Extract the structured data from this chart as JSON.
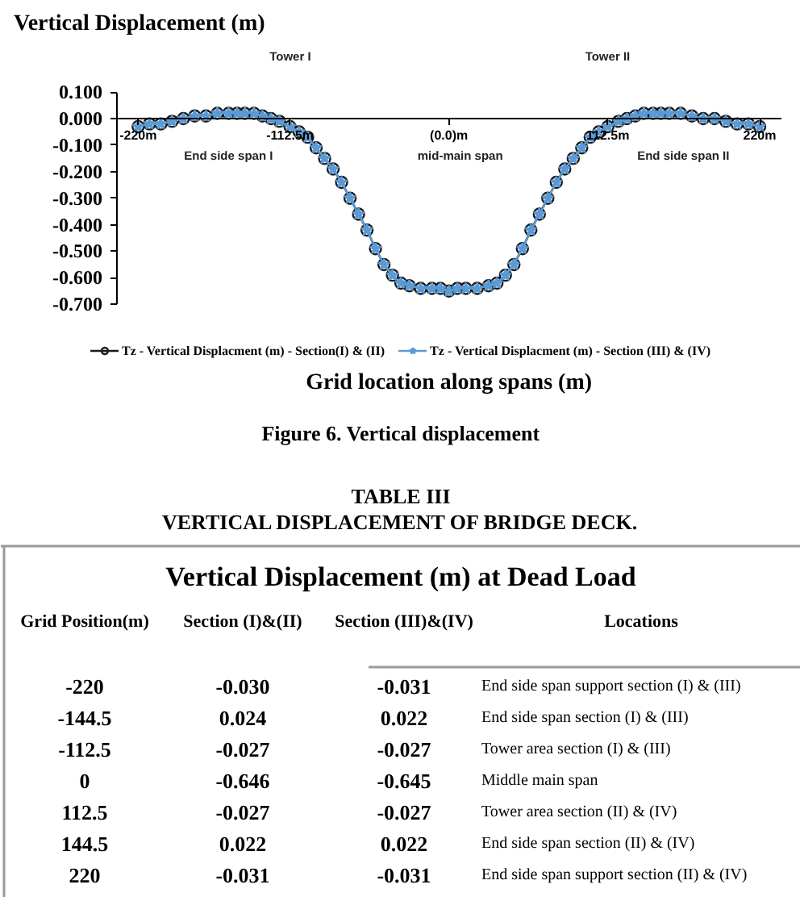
{
  "chart_data": [
    {
      "type": "line",
      "title": "Vertical Displacement (m)",
      "xlabel": "Grid location along spans (m)",
      "x": [
        -220,
        -212,
        -204,
        -196,
        -188,
        -180,
        -172,
        -164,
        -156,
        -150,
        -144.5,
        -138,
        -132,
        -126,
        -120,
        -112.5,
        -106,
        -100,
        -94,
        -88,
        -82,
        -76,
        -70,
        -64,
        -58,
        -52,
        -46,
        -40,
        -34,
        -28,
        -20,
        -12,
        -6,
        0,
        6,
        12,
        20,
        28,
        34,
        40,
        46,
        52,
        58,
        64,
        70,
        76,
        82,
        88,
        94,
        100,
        106,
        112.5,
        120,
        126,
        132,
        138,
        144.5,
        150,
        156,
        164,
        172,
        180,
        188,
        196,
        204,
        212,
        220
      ],
      "xlim": [
        -235,
        235
      ],
      "xticks": [
        {
          "value": -220,
          "label": "-220m"
        },
        {
          "value": -112.5,
          "label": "-112.5m"
        },
        {
          "value": 0,
          "label": "(0.0)m"
        },
        {
          "value": 112.5,
          "label": "112.5m"
        },
        {
          "value": 220,
          "label": "220m"
        }
      ],
      "ylim": [
        -0.7,
        0.1
      ],
      "yticks": [
        {
          "value": 0.1,
          "label": "0.100"
        },
        {
          "value": 0,
          "label": "0.000"
        },
        {
          "value": -0.1,
          "label": "-0.100"
        },
        {
          "value": -0.2,
          "label": "-0.200"
        },
        {
          "value": -0.3,
          "label": "-0.300"
        },
        {
          "value": -0.4,
          "label": "-0.400"
        },
        {
          "value": -0.5,
          "label": "-0.500"
        },
        {
          "value": -0.6,
          "label": "-0.600"
        },
        {
          "value": -0.7,
          "label": "-0.700"
        }
      ],
      "series": [
        {
          "name": "Tz - Vertical Displacment (m) - Section(I) & (II)",
          "color": "#1a1a1a",
          "marker": "circle",
          "values": [
            -0.03,
            -0.02,
            -0.02,
            -0.01,
            0.0,
            0.01,
            0.01,
            0.02,
            0.02,
            0.02,
            0.02,
            0.02,
            0.01,
            0.0,
            -0.01,
            -0.03,
            -0.05,
            -0.07,
            -0.11,
            -0.15,
            -0.19,
            -0.24,
            -0.3,
            -0.36,
            -0.42,
            -0.49,
            -0.55,
            -0.59,
            -0.62,
            -0.63,
            -0.64,
            -0.64,
            -0.64,
            -0.65,
            -0.64,
            -0.64,
            -0.64,
            -0.63,
            -0.62,
            -0.59,
            -0.55,
            -0.49,
            -0.42,
            -0.36,
            -0.3,
            -0.24,
            -0.19,
            -0.15,
            -0.11,
            -0.07,
            -0.05,
            -0.03,
            -0.01,
            0.0,
            0.01,
            0.02,
            0.02,
            0.02,
            0.02,
            0.02,
            0.01,
            0.0,
            0.0,
            -0.01,
            -0.02,
            -0.02,
            -0.03
          ]
        },
        {
          "name": "Tz - Vertical Displacment (m) - Section (III) & (IV)",
          "color": "#5b9bd5",
          "marker": "star",
          "values": [
            -0.03,
            -0.02,
            -0.02,
            -0.01,
            0.0,
            0.01,
            0.01,
            0.02,
            0.02,
            0.02,
            0.02,
            0.02,
            0.01,
            0.0,
            -0.01,
            -0.03,
            -0.05,
            -0.07,
            -0.11,
            -0.15,
            -0.19,
            -0.24,
            -0.3,
            -0.36,
            -0.42,
            -0.49,
            -0.55,
            -0.59,
            -0.62,
            -0.63,
            -0.64,
            -0.64,
            -0.64,
            -0.65,
            -0.64,
            -0.64,
            -0.64,
            -0.63,
            -0.62,
            -0.59,
            -0.55,
            -0.49,
            -0.42,
            -0.36,
            -0.3,
            -0.24,
            -0.19,
            -0.15,
            -0.11,
            -0.07,
            -0.05,
            -0.03,
            -0.01,
            0.0,
            0.01,
            0.02,
            0.02,
            0.02,
            0.02,
            0.02,
            0.01,
            0.0,
            0.0,
            -0.01,
            -0.02,
            -0.02,
            -0.03
          ]
        }
      ],
      "legend": "bottom",
      "annotations": [
        "Tower I",
        "Tower II",
        "End side span I",
        "mid-main span",
        "End side span II",
        "Figure 6. Vertical displacement"
      ]
    },
    {
      "type": "other",
      "title": "TABLE III",
      "subtitle": "VERTICAL DISPLACEMENT OF BRIDGE DECK.",
      "xlabel": "Grid Position(m)",
      "categories": [
        "-220",
        "-144.5",
        "-112.5",
        "0",
        "112.5",
        "144.5",
        "220"
      ],
      "series": [
        {
          "name": "Section (I)&(II)",
          "values": [
            -0.03,
            0.024,
            -0.027,
            -0.646,
            -0.027,
            0.022,
            -0.031
          ],
          "value_labels": [
            "-0.030",
            "0.024",
            "-0.027",
            "-0.646",
            "-0.027",
            "0.022",
            "-0.031"
          ]
        },
        {
          "name": "Section (III)&(IV)",
          "values": [
            -0.031,
            0.022,
            -0.027,
            -0.645,
            -0.027,
            0.022,
            -0.031
          ],
          "value_labels": [
            "-0.031",
            "0.022",
            "-0.027",
            "-0.645",
            "-0.027",
            "0.022",
            "-0.031"
          ]
        }
      ],
      "annotations": [
        "Vertical Displacement (m) at Dead Load",
        "Locations",
        {
          "text": "End side span support section (I) & (III)",
          "x": "-220"
        },
        {
          "text": "End side span section (I) & (III)",
          "x": "-144.5"
        },
        {
          "text": "Tower area section (I) & (III)",
          "x": "-112.5"
        },
        {
          "text": "Middle main span",
          "x": "0"
        },
        {
          "text": "Tower area section (II) & (IV)",
          "x": "112.5"
        },
        {
          "text": "End side span section (II) & (IV)",
          "x": "144.5"
        },
        {
          "text": "End side span support section (II) & (IV)",
          "x": "220"
        }
      ]
    }
  ]
}
